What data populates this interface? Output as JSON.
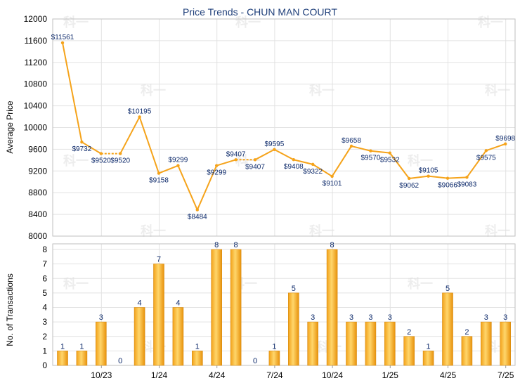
{
  "chart_data": [
    {
      "type": "line",
      "title": "Price Trends - CHUN MAN COURT",
      "ylabel": "Average Price",
      "ylim": [
        8000,
        12000
      ],
      "yticks": [
        8000,
        8400,
        8800,
        9200,
        9600,
        10000,
        10400,
        10800,
        11200,
        11600,
        12000
      ],
      "grid": true,
      "color": "#f5a31a",
      "series": [
        {
          "points": [
            {
              "i": 0,
              "y": 11561,
              "label": "$11561"
            },
            {
              "i": 1,
              "y": 9732,
              "label": "$9732"
            },
            {
              "i": 2,
              "y": 9520,
              "label": "$9520"
            },
            {
              "i": 3,
              "y": 9520,
              "label": "$9520"
            },
            {
              "i": 4,
              "y": 10195,
              "label": "$10195"
            },
            {
              "i": 5,
              "y": 9158,
              "label": "$9158"
            },
            {
              "i": 6,
              "y": 9299,
              "label": "$9299"
            },
            {
              "i": 7,
              "y": 8484,
              "label": "$8484"
            },
            {
              "i": 8,
              "y": 9299,
              "label": "$9299"
            },
            {
              "i": 9,
              "y": 9407,
              "label": "$9407"
            },
            {
              "i": 10,
              "y": 9407,
              "label": "$9407"
            },
            {
              "i": 11,
              "y": 9595,
              "label": "$9595"
            },
            {
              "i": 12,
              "y": 9408,
              "label": "$9408"
            },
            {
              "i": 13,
              "y": 9322,
              "label": "$9322"
            },
            {
              "i": 14,
              "y": 9101,
              "label": "$9101"
            },
            {
              "i": 15,
              "y": 9658,
              "label": "$9658"
            },
            {
              "i": 16,
              "y": 9570,
              "label": "$9570"
            },
            {
              "i": 17,
              "y": 9532,
              "label": "$9532"
            },
            {
              "i": 18,
              "y": 9062,
              "label": "$9062"
            },
            {
              "i": 19,
              "y": 9105,
              "label": "$9105"
            },
            {
              "i": 20,
              "y": 9066,
              "label": "$9066"
            },
            {
              "i": 21,
              "y": 9083,
              "label": "$9083"
            },
            {
              "i": 22,
              "y": 9575,
              "label": "$9575"
            },
            {
              "i": 23,
              "y": 9698,
              "label": "$9698"
            }
          ],
          "dashed_segments": [
            [
              2,
              3
            ],
            [
              9,
              10
            ]
          ]
        }
      ]
    },
    {
      "type": "bar",
      "ylabel": "No. of Transactions",
      "ylim": [
        0,
        8
      ],
      "yticks": [
        0,
        1,
        2,
        3,
        4,
        5,
        6,
        7,
        8
      ],
      "grid": true,
      "color": "#f5a31a",
      "x_tick_labels": [
        {
          "i": 2.5,
          "label": "10/23"
        },
        {
          "i": 5.5,
          "label": "1/24"
        },
        {
          "i": 8.5,
          "label": "4/24"
        },
        {
          "i": 11.5,
          "label": "7/24"
        },
        {
          "i": 14.5,
          "label": "10/24"
        },
        {
          "i": 17.5,
          "label": "1/25"
        },
        {
          "i": 20.5,
          "label": "4/25"
        },
        {
          "i": 23.5,
          "label": "7/25"
        }
      ],
      "values": [
        1,
        1,
        3,
        0,
        4,
        7,
        4,
        1,
        8,
        8,
        0,
        1,
        5,
        3,
        8,
        3,
        3,
        3,
        2,
        1,
        5,
        2,
        3,
        3
      ]
    }
  ],
  "watermark": "科一"
}
